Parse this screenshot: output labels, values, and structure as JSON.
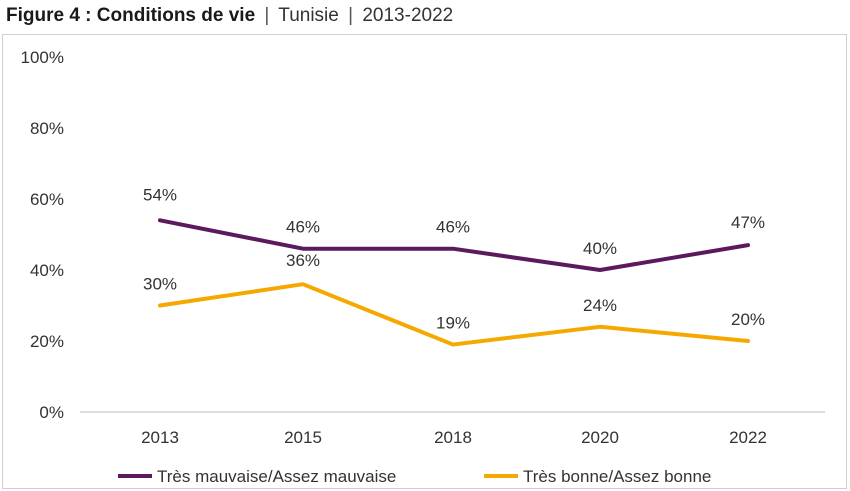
{
  "header": {
    "title": "Figure 4 : Conditions de vie",
    "sep1": "|",
    "country": "Tunisie",
    "sep2": "|",
    "period": "2013-2022"
  },
  "chart_data": {
    "type": "line",
    "title": "Figure 4 : Conditions de vie | Tunisie | 2013-2022",
    "categories": [
      "2013",
      "2015",
      "2018",
      "2020",
      "2022"
    ],
    "ylim": [
      0,
      100
    ],
    "yticks": [
      "0%",
      "20%",
      "40%",
      "60%",
      "80%",
      "100%"
    ],
    "grid": false,
    "legend_position": "bottom",
    "series": [
      {
        "name": "Très mauvaise/Assez mauvaise",
        "values": [
          54,
          46,
          46,
          40,
          47
        ],
        "labels": [
          "54%",
          "46%",
          "46%",
          "40%",
          "47%"
        ],
        "color": "#5b1a5e"
      },
      {
        "name": "Très bonne/Assez bonne",
        "values": [
          30,
          36,
          19,
          24,
          20
        ],
        "labels": [
          "30%",
          "36%",
          "19%",
          "24%",
          "20%"
        ],
        "color": "#f5a800"
      }
    ]
  }
}
